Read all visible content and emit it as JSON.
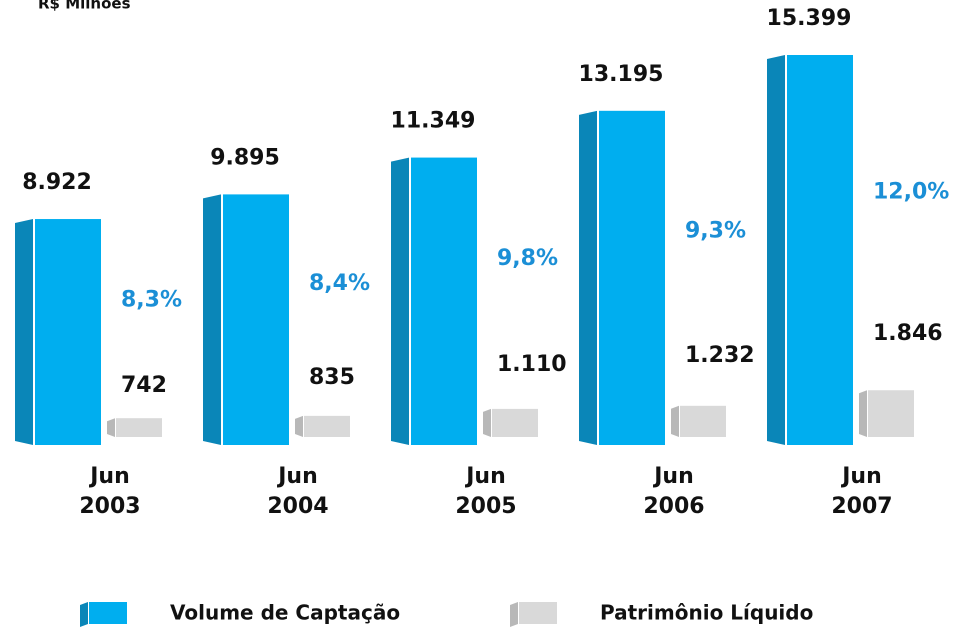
{
  "chart_data": {
    "type": "bar3d",
    "title": "R$ Milhões",
    "categories": [
      "Jun 2003",
      "Jun 2004",
      "Jun 2005",
      "Jun 2006",
      "Jun 2007"
    ],
    "series": [
      {
        "name": "Volume de Captação",
        "color": "#00aeef",
        "side_color": "#0a86b8",
        "values": [
          8922,
          9895,
          11349,
          13195,
          15399
        ],
        "value_labels": [
          "8.922",
          "9.895",
          "11.349",
          "13.195",
          "15.399"
        ]
      },
      {
        "name": "Patrimônio Líquido",
        "color": "#d9d9d9",
        "side_color": "#b8b8b8",
        "values": [
          742,
          835,
          1110,
          1232,
          1846
        ],
        "value_labels": [
          "742",
          "835",
          "1.110",
          "1.232",
          "1.846"
        ]
      }
    ],
    "annotations": [
      "8,3%",
      "8,4%",
      "9,8%",
      "9,3%",
      "12,0%"
    ],
    "annotation_color": "#1b8fd6"
  }
}
